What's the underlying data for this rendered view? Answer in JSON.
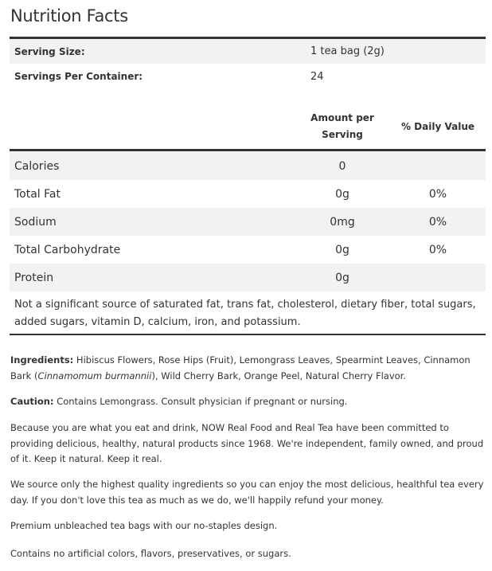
{
  "title": "Nutrition Facts",
  "serving": {
    "size_label": "Serving Size:",
    "size_value": "1 tea bag (2g)",
    "per_container_label": "Servings Per Container:",
    "per_container_value": "24"
  },
  "headers": {
    "amount_line1": "Amount per",
    "amount_line2": "Serving",
    "daily_value": "% Daily Value"
  },
  "nutrients": [
    {
      "name": "Calories",
      "amount": "0",
      "dv": ""
    },
    {
      "name": "Total Fat",
      "amount": "0g",
      "dv": "0%"
    },
    {
      "name": "Sodium",
      "amount": "0mg",
      "dv": "0%"
    },
    {
      "name": "Total Carbohydrate",
      "amount": "0g",
      "dv": "0%"
    },
    {
      "name": "Protein",
      "amount": "0g",
      "dv": ""
    }
  ],
  "note": "Not a significant source of saturated fat, trans fat, cholesterol, dietary fiber, total sugars, added sugars, vitamin D, calcium, iron, and potassium.",
  "ingredients": {
    "label": "Ingredients:",
    "text1": " Hibiscus Flowers, Rose Hips (Fruit), Lemongrass Leaves, Spearmint Leaves, Cinnamon Bark (",
    "italic": "Cinnamomum burmannii",
    "text2": "), Wild Cherry Bark, Orange Peel, Natural Cherry Flavor."
  },
  "caution": {
    "label": "Caution:",
    "text": " Contains Lemongrass. Consult physician if pregnant or nursing."
  },
  "paragraphs": [
    "Because you are what you eat and drink, NOW Real Food and Real Tea have been committed to providing delicious, healthy, natural products since 1968. We're independent, family owned, and proud of it. Keep it natural. Keep it real.",
    "We source only the highest quality ingredients so you can enjoy the most delicious, healthful tea every day. If you don't love this tea as much as we do, we'll happily refund your money.",
    "Premium unbleached tea bags with our no-staples design.",
    "Contains no artificial colors, flavors, preservatives, or sugars."
  ]
}
